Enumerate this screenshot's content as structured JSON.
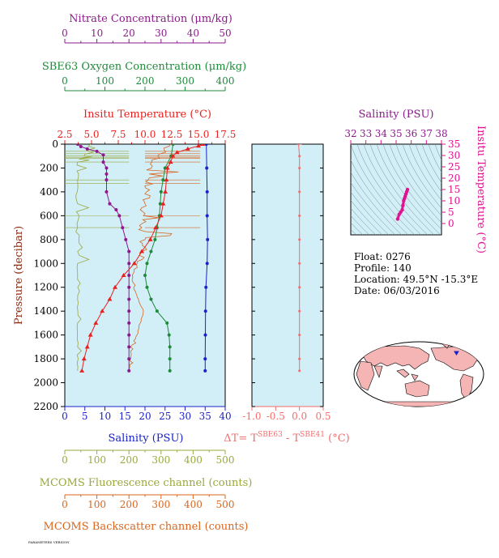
{
  "colors": {
    "nitrate": "#8B1A8B",
    "oxygen": "#1E8B3A",
    "temperature": "#E8211E",
    "salinity": "#1A22C8",
    "fluorescence": "#9AA83C",
    "backscatter": "#D8661E",
    "deltaT": "#F26D6D",
    "ts": "#E0128F",
    "panel_bg": "#D2EEF7",
    "land": "#F5B5B5",
    "ocean": "#FFFFFF"
  },
  "axes": {
    "nitrate": {
      "label": "Nitrate Concentration (μm/kg)",
      "ticks": [
        "0",
        "10",
        "20",
        "30",
        "40",
        "50"
      ]
    },
    "oxygen": {
      "label": "SBE63 Oxygen Concentration (μm/kg)",
      "ticks": [
        "0",
        "100",
        "200",
        "300",
        "400"
      ]
    },
    "temperature": {
      "label": "Insitu Temperature (°C)",
      "ticks": [
        "2.5",
        "5.0",
        "7.5",
        "10.0",
        "12.5",
        "15.0",
        "17.5"
      ]
    },
    "pressure": {
      "label": "Pressure (decibar)",
      "ticks": [
        "0",
        "200",
        "400",
        "600",
        "800",
        "1000",
        "1200",
        "1400",
        "1600",
        "1800",
        "2000",
        "2200"
      ]
    },
    "salinity": {
      "label": "Salinity (PSU)",
      "ticks": [
        "0",
        "5",
        "10",
        "15",
        "20",
        "25",
        "30",
        "35",
        "40"
      ]
    },
    "fluorescence": {
      "label": "MCOMS Fluorescence channel (counts)",
      "ticks": [
        "0",
        "100",
        "200",
        "300",
        "400",
        "500"
      ]
    },
    "backscatter": {
      "label": "MCOMS Backscatter channel (counts)",
      "ticks": [
        "0",
        "100",
        "200",
        "300",
        "400",
        "500"
      ]
    },
    "deltaT": {
      "label_prefix": "ΔT= T",
      "sup1": "SBE63",
      "mid": " - T",
      "sup2": "SBE41",
      "suffix": " (°C)",
      "ticks": [
        "-1.0",
        "-0.5",
        "0.0",
        "0.5"
      ]
    },
    "ts_salinity": {
      "label": "Salinity (PSU)",
      "ticks": [
        "32",
        "33",
        "34",
        "35",
        "36",
        "37",
        "38"
      ]
    },
    "ts_temperature": {
      "label": "Insitu Temperature (°C)",
      "ticks": [
        "0",
        "5",
        "10",
        "15",
        "20",
        "25",
        "30",
        "35"
      ]
    }
  },
  "info": {
    "float": "Float:  0276",
    "profile": "Profile:  140",
    "location": "Location:  49.5°N  -15.3°E",
    "date": "Date:  06/03/2016"
  },
  "footer": "PARAMETERS VERSION",
  "chart_data": [
    {
      "type": "line",
      "name": "profile",
      "ylim": [
        2200,
        0
      ],
      "temperature": {
        "xlim": [
          2.5,
          17.5
        ],
        "points": [
          [
            15.4,
            0
          ],
          [
            15.0,
            15
          ],
          [
            14.0,
            40
          ],
          [
            13.0,
            70
          ],
          [
            12.6,
            100
          ],
          [
            12.4,
            150
          ],
          [
            12.1,
            200
          ],
          [
            12.0,
            300
          ],
          [
            11.9,
            400
          ],
          [
            11.7,
            500
          ],
          [
            11.5,
            600
          ],
          [
            11.0,
            700
          ],
          [
            10.5,
            800
          ],
          [
            9.7,
            900
          ],
          [
            9.0,
            1000
          ],
          [
            8.0,
            1100
          ],
          [
            7.2,
            1200
          ],
          [
            6.7,
            1300
          ],
          [
            6.0,
            1400
          ],
          [
            5.4,
            1500
          ],
          [
            4.9,
            1600
          ],
          [
            4.6,
            1700
          ],
          [
            4.3,
            1800
          ],
          [
            4.1,
            1900
          ]
        ]
      },
      "salinity": {
        "xlim": [
          0,
          40
        ],
        "points": [
          [
            35.3,
            0
          ],
          [
            35.4,
            200
          ],
          [
            35.5,
            400
          ],
          [
            35.5,
            600
          ],
          [
            35.6,
            800
          ],
          [
            35.5,
            1000
          ],
          [
            35.2,
            1200
          ],
          [
            35.1,
            1400
          ],
          [
            35.05,
            1600
          ],
          [
            35.0,
            1800
          ],
          [
            35.0,
            1900
          ]
        ]
      },
      "nitrate": {
        "xlim": [
          0,
          50
        ],
        "points": [
          [
            4,
            0
          ],
          [
            5,
            20
          ],
          [
            7,
            40
          ],
          [
            10,
            60
          ],
          [
            12,
            90
          ],
          [
            12,
            150
          ],
          [
            13,
            200
          ],
          [
            13,
            250
          ],
          [
            13,
            300
          ],
          [
            13,
            400
          ],
          [
            14,
            500
          ],
          [
            16,
            550
          ],
          [
            17,
            600
          ],
          [
            18,
            700
          ],
          [
            19,
            800
          ],
          [
            20,
            900
          ],
          [
            20,
            1000
          ],
          [
            20,
            1100
          ],
          [
            20,
            1200
          ],
          [
            20,
            1300
          ],
          [
            20,
            1400
          ],
          [
            20,
            1500
          ],
          [
            20,
            1600
          ],
          [
            20,
            1700
          ],
          [
            20,
            1800
          ],
          [
            20,
            1900
          ]
        ]
      },
      "oxygen": {
        "xlim": [
          0,
          400
        ],
        "points": [
          [
            270,
            0
          ],
          [
            265,
            100
          ],
          [
            250,
            200
          ],
          [
            245,
            300
          ],
          [
            240,
            400
          ],
          [
            238,
            500
          ],
          [
            236,
            600
          ],
          [
            230,
            700
          ],
          [
            225,
            800
          ],
          [
            215,
            900
          ],
          [
            205,
            1000
          ],
          [
            200,
            1100
          ],
          [
            205,
            1200
          ],
          [
            215,
            1300
          ],
          [
            230,
            1400
          ],
          [
            255,
            1500
          ],
          [
            260,
            1600
          ],
          [
            262,
            1700
          ],
          [
            262,
            1800
          ],
          [
            262,
            1900
          ]
        ]
      },
      "fluorescence": {
        "xlim": [
          0,
          500
        ],
        "points": [
          [
            80,
            0
          ],
          [
            60,
            100
          ],
          [
            40,
            150
          ],
          [
            40,
            300
          ],
          [
            40,
            500
          ],
          [
            40,
            700
          ],
          [
            40,
            900
          ],
          [
            40,
            1100
          ],
          [
            40,
            1300
          ],
          [
            40,
            1500
          ],
          [
            40,
            1700
          ],
          [
            40,
            1900
          ]
        ]
      },
      "backscatter": {
        "xlim": [
          0,
          500
        ],
        "points": [
          [
            330,
            0
          ],
          [
            290,
            100
          ],
          [
            270,
            200
          ],
          [
            260,
            300
          ],
          [
            255,
            400
          ],
          [
            250,
            500
          ],
          [
            245,
            600
          ],
          [
            240,
            700
          ],
          [
            250,
            800
          ],
          [
            240,
            900
          ],
          [
            225,
            1000
          ],
          [
            210,
            1100
          ],
          [
            215,
            1200
          ],
          [
            230,
            1300
          ],
          [
            245,
            1400
          ],
          [
            235,
            1500
          ],
          [
            225,
            1600
          ],
          [
            205,
            1700
          ],
          [
            205,
            1800
          ],
          [
            200,
            1900
          ]
        ]
      }
    },
    {
      "type": "line",
      "name": "deltaT",
      "xlim": [
        -1.0,
        0.5
      ],
      "ylim": [
        2200,
        0
      ],
      "points": [
        [
          -0.02,
          0
        ],
        [
          0.0,
          100
        ],
        [
          0.0,
          200
        ],
        [
          0.0,
          400
        ],
        [
          0.0,
          600
        ],
        [
          0.0,
          800
        ],
        [
          0.0,
          1000
        ],
        [
          0.0,
          1200
        ],
        [
          0.0,
          1400
        ],
        [
          0.0,
          1600
        ],
        [
          0.0,
          1800
        ],
        [
          0.0,
          1900
        ]
      ]
    },
    {
      "type": "scatter",
      "name": "ts",
      "xlim": [
        32,
        38
      ],
      "ylim": [
        -5,
        35
      ],
      "points": [
        [
          35.1,
          2
        ],
        [
          35.2,
          4
        ],
        [
          35.3,
          5
        ],
        [
          35.4,
          6
        ],
        [
          35.45,
          8
        ],
        [
          35.5,
          10
        ],
        [
          35.55,
          11
        ],
        [
          35.6,
          12
        ],
        [
          35.65,
          13
        ],
        [
          35.7,
          14
        ],
        [
          35.75,
          15
        ]
      ]
    }
  ]
}
